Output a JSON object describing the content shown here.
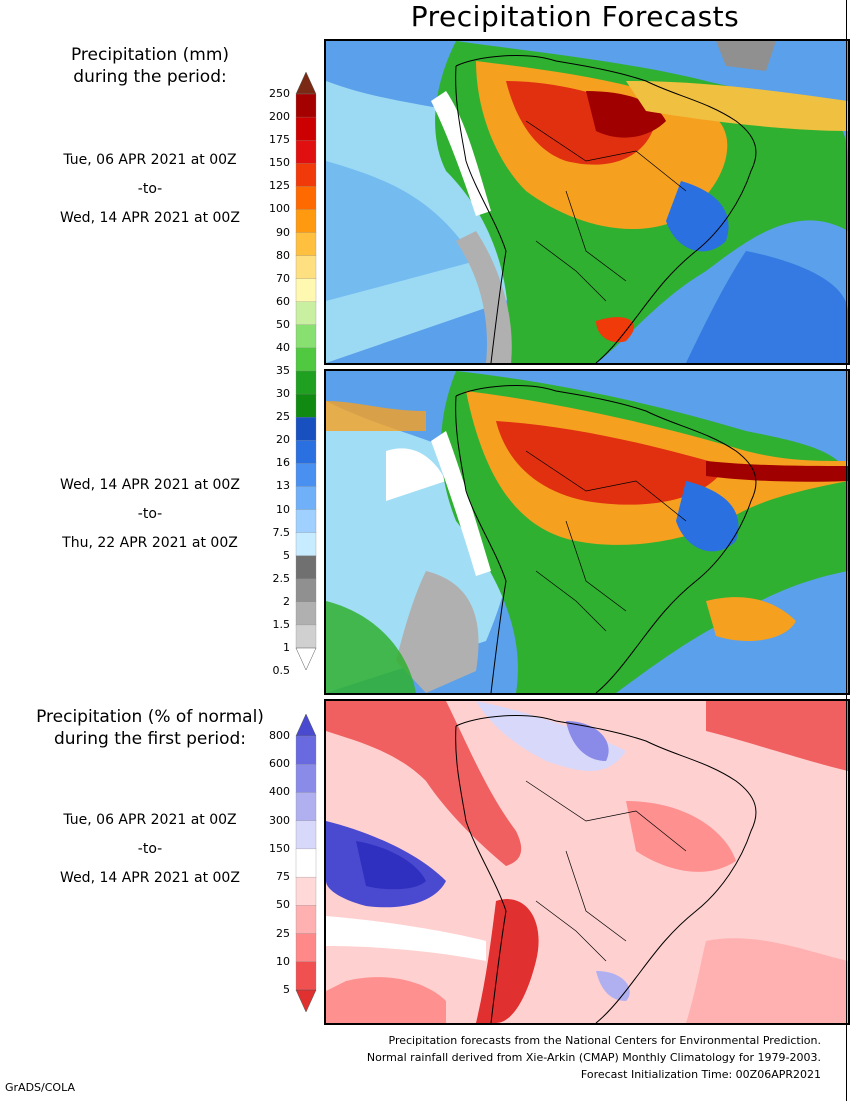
{
  "title": "Precipitation Forecasts",
  "amount_legend": {
    "heading_line1": "Precipitation (mm)",
    "heading_line2": "during the period:",
    "labels": [
      "250",
      "200",
      "175",
      "150",
      "125",
      "100",
      "90",
      "80",
      "70",
      "60",
      "50",
      "40",
      "35",
      "30",
      "25",
      "20",
      "16",
      "13",
      "10",
      "7.5",
      "5",
      "2.5",
      "2",
      "1.5",
      "1",
      "0.5"
    ],
    "colors": [
      "#7a2a14",
      "#a50000",
      "#cc0000",
      "#e01010",
      "#f03a0a",
      "#ff6a00",
      "#ff9a10",
      "#ffc040",
      "#ffe080",
      "#fff8b0",
      "#c8f0a0",
      "#88e070",
      "#50c840",
      "#20a020",
      "#108a10",
      "#1850c0",
      "#2a70e0",
      "#4a90f0",
      "#70b0f8",
      "#a0d0ff",
      "#c8ecff",
      "#707070",
      "#909090",
      "#b0b0b0",
      "#d0d0d0",
      "#ffffff"
    ]
  },
  "percent_legend": {
    "heading_line1": "Precipitation (% of normal)",
    "heading_line2": "during the first period:",
    "labels": [
      "800",
      "600",
      "400",
      "300",
      "150",
      "75",
      "50",
      "25",
      "10",
      "5"
    ],
    "colors": [
      "#4a4ad0",
      "#6a6ae0",
      "#8a8ae8",
      "#b0b0f0",
      "#d8d8fa",
      "#ffffff",
      "#ffd8d8",
      "#ffb0b0",
      "#ff8888",
      "#f05050",
      "#e03030"
    ]
  },
  "periods": [
    {
      "start": "Tue, 06 APR 2021 at 00Z",
      "sep": "-to-",
      "end": "Wed, 14 APR 2021 at 00Z"
    },
    {
      "start": "Wed, 14 APR 2021 at 00Z",
      "sep": "-to-",
      "end": "Thu, 22 APR 2021 at 00Z"
    },
    {
      "start": "Tue, 06 APR 2021 at 00Z",
      "sep": "-to-",
      "end": "Wed, 14 APR 2021 at 00Z"
    }
  ],
  "footer": {
    "line1": "Precipitation forecasts from the National Centers for Environmental Prediction.",
    "line2": "Normal rainfall derived from Xie-Arkin (CMAP) Monthly Climatology for 1979-2003.",
    "line3": "Forecast Initialization Time: 00Z06APR2021"
  },
  "credit": "GrADS/COLA"
}
